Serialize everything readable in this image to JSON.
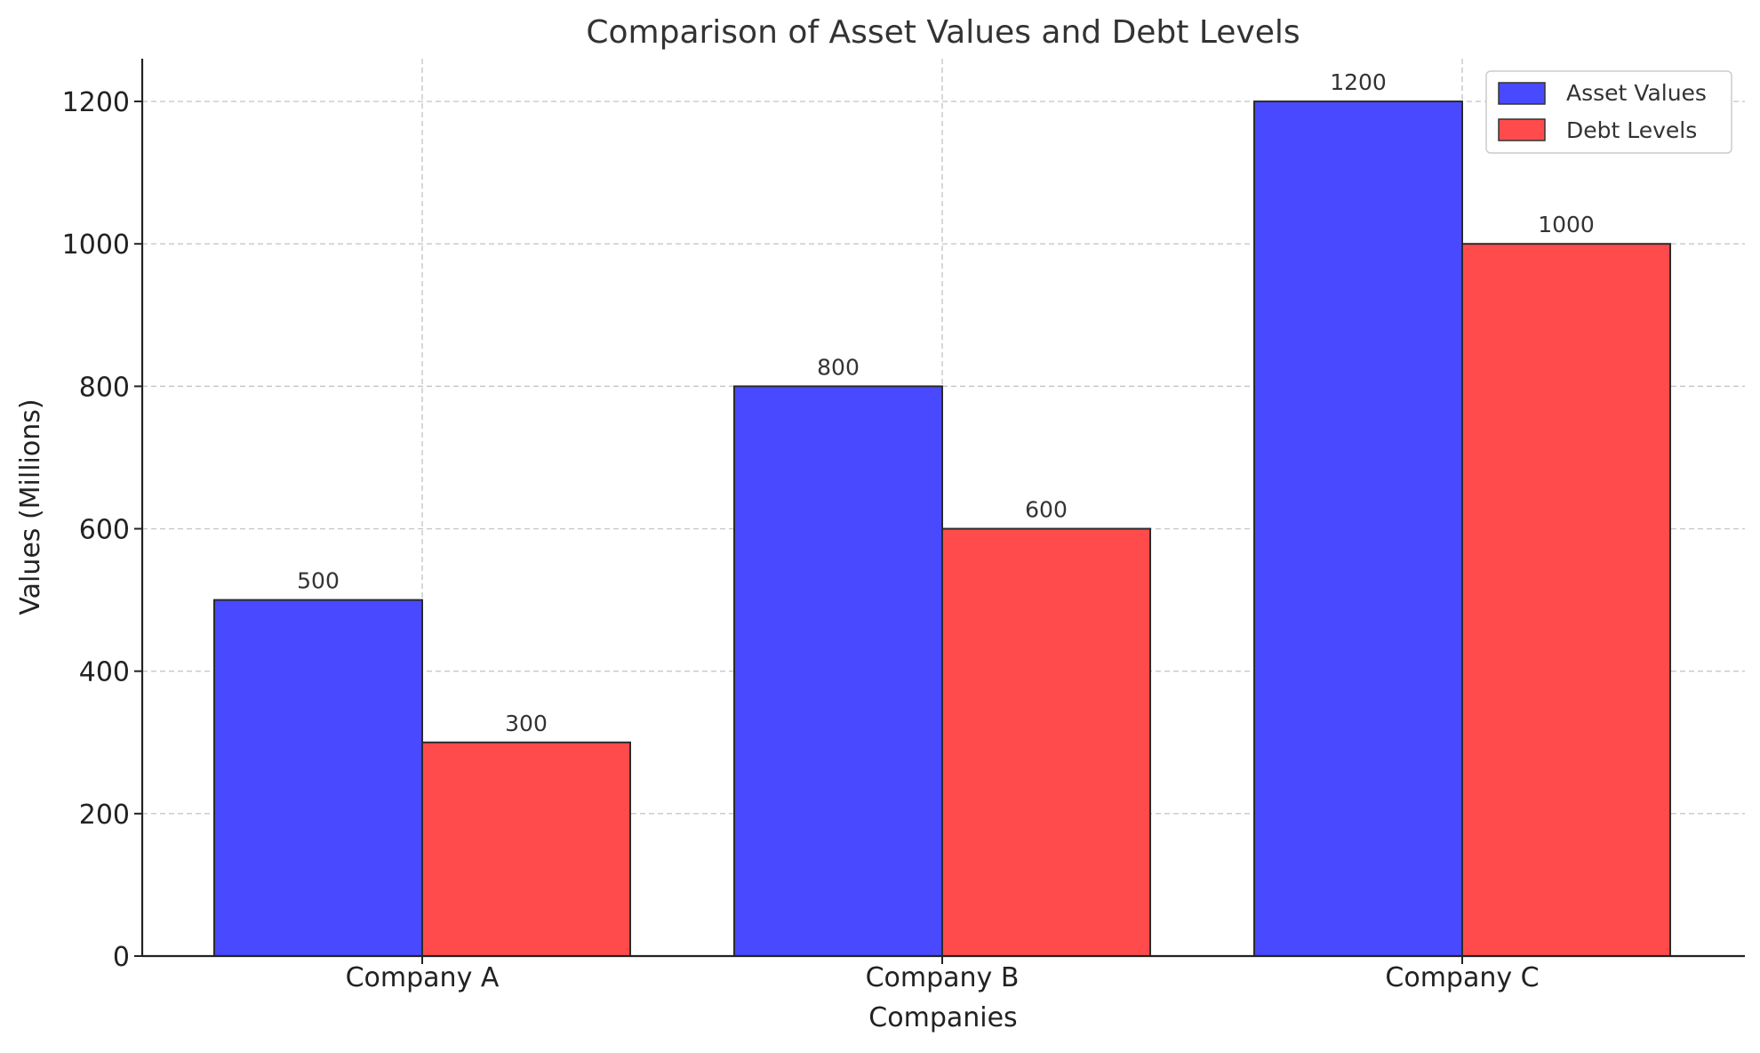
{
  "chart_data": {
    "type": "bar",
    "title": "Comparison of Asset Values and Debt Levels",
    "xlabel": "Companies",
    "ylabel": "Values (Millions)",
    "categories": [
      "Company A",
      "Company B",
      "Company C"
    ],
    "series": [
      {
        "name": "Asset Values",
        "values": [
          500,
          800,
          1200
        ],
        "color": "#4949ff"
      },
      {
        "name": "Debt Levels",
        "values": [
          300,
          600,
          1000
        ],
        "color": "#ff4b4b"
      }
    ],
    "ylim": [
      0,
      1260
    ],
    "yticks": [
      0,
      200,
      400,
      600,
      800,
      1000,
      1200
    ],
    "grid": true,
    "legend_position": "top-right"
  }
}
